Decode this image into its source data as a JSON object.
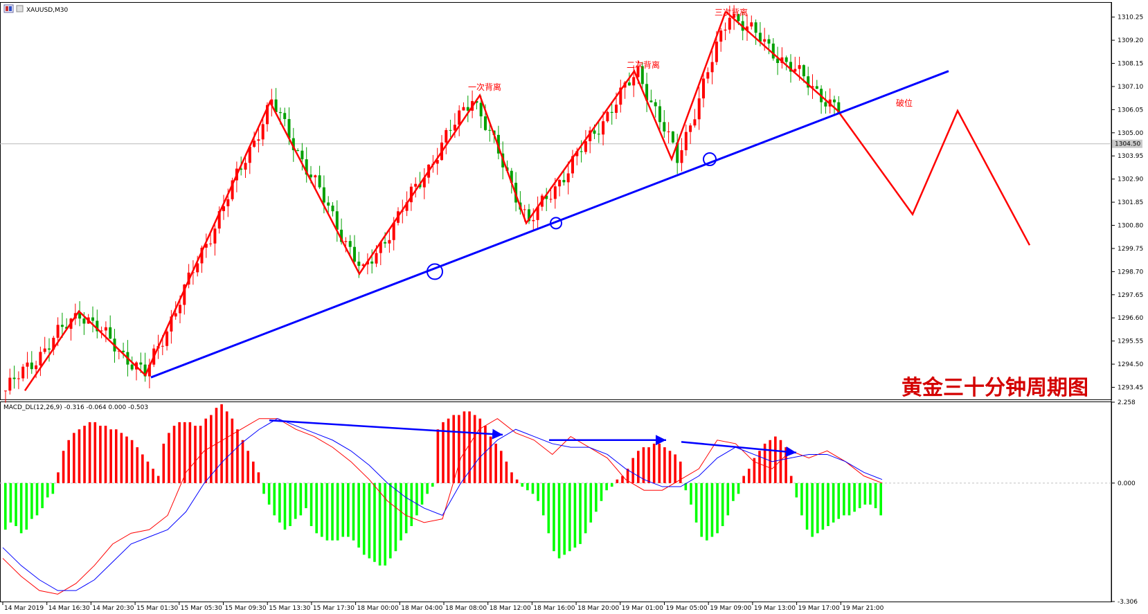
{
  "window": {
    "symbol_title": "XAUUSD,M30",
    "indicator_title": "MACD_DL(12,26,9) -0.316 -0.064 0.000 -0.503"
  },
  "chart_data": [
    {
      "type": "candlestick",
      "title": "黄金三十分钟周期图",
      "ylim": [
        1292.9,
        1310.9
      ],
      "y_ticks": [
        "1310.25",
        "1309.20",
        "1308.15",
        "1307.10",
        "1306.05",
        "1305.00",
        "1303.95",
        "1302.90",
        "1301.85",
        "1300.80",
        "1299.75",
        "1298.70",
        "1297.65",
        "1296.60",
        "1295.55",
        "1294.50",
        "1293.45"
      ],
      "current_price": "1304.50",
      "x_labels": [
        "14 Mar 2019",
        "14 Mar 16:30",
        "14 Mar 20:30",
        "15 Mar 01:30",
        "15 Mar 05:30",
        "15 Mar 09:30",
        "15 Mar 13:30",
        "15 Mar 17:30",
        "18 Mar 00:00",
        "18 Mar 04:00",
        "18 Mar 08:00",
        "18 Mar 12:00",
        "18 Mar 16:00",
        "18 Mar 20:00",
        "19 Mar 01:00",
        "19 Mar 05:00",
        "19 Mar 09:00",
        "19 Mar 13:00",
        "19 Mar 17:00",
        "19 Mar 21:00"
      ],
      "bull_color": "#ff0000",
      "bear_color": "#00a000",
      "zigzag_prices": [
        1293.3,
        1296.9,
        1294.0,
        1306.4,
        1298.6,
        1306.7,
        1300.9,
        1307.8,
        1303.8,
        1310.5
      ],
      "projection_prices": [
        1306.0,
        1301.3,
        1306.0,
        1299.9
      ],
      "trendline_prices": [
        1293.9,
        1307.8
      ],
      "touch_circle_prices": [
        1298.7,
        1300.9,
        1303.8
      ],
      "annotations": {
        "first": "一次背离",
        "second": "二次背离",
        "third": "三次背离",
        "break": "破位"
      },
      "zigzag_color": "#ff0000",
      "trendline_color": "#0000ff"
    },
    {
      "type": "macd",
      "ylim": [
        -3.306,
        2.258
      ],
      "y_ticks": [
        "2.258",
        "0.000",
        "-3.306"
      ],
      "histogram": [
        -1.3,
        -1.1,
        -1.2,
        -1.4,
        -1.3,
        -1.0,
        -0.9,
        -0.7,
        -0.4,
        -0.3,
        0.3,
        0.9,
        1.2,
        1.4,
        1.5,
        1.6,
        1.7,
        1.7,
        1.6,
        1.6,
        1.5,
        1.5,
        1.4,
        1.3,
        1.2,
        1.0,
        0.8,
        0.6,
        0.4,
        0.2,
        1.1,
        1.4,
        1.6,
        1.7,
        1.7,
        1.7,
        1.6,
        1.6,
        1.8,
        1.9,
        2.1,
        2.2,
        2.0,
        1.8,
        1.5,
        1.2,
        0.9,
        0.6,
        0.3,
        -0.3,
        -0.6,
        -0.9,
        -1.1,
        -1.3,
        -1.2,
        -1.0,
        -0.9,
        -0.7,
        -1.2,
        -1.4,
        -1.5,
        -1.6,
        -1.6,
        -1.6,
        -1.5,
        -1.5,
        -1.6,
        -1.8,
        -2.0,
        -2.1,
        -2.2,
        -2.3,
        -2.3,
        -2.1,
        -1.9,
        -1.6,
        -1.4,
        -1.2,
        -0.9,
        -0.6,
        -0.3,
        -0.1,
        1.5,
        1.7,
        1.8,
        1.9,
        1.9,
        2.0,
        2.0,
        1.9,
        1.8,
        1.6,
        1.3,
        1.1,
        0.9,
        0.6,
        0.3,
        0.1,
        -0.1,
        -0.2,
        -0.3,
        -0.5,
        -0.9,
        -1.4,
        -1.9,
        -2.1,
        -2.0,
        -1.9,
        -1.8,
        -1.7,
        -1.4,
        -1.1,
        -0.8,
        -0.5,
        -0.2,
        -0.1,
        0.1,
        0.2,
        0.4,
        0.7,
        0.9,
        1.0,
        1.0,
        1.1,
        1.1,
        1.0,
        0.9,
        0.8,
        0.6,
        -0.2,
        -0.6,
        -1.1,
        -1.5,
        -1.6,
        -1.5,
        -1.4,
        -1.2,
        -0.9,
        -0.5,
        -0.3,
        0.2,
        0.4,
        0.7,
        0.9,
        1.1,
        1.2,
        1.3,
        1.2,
        1.0,
        0.2,
        -0.4,
        -0.9,
        -1.3,
        -1.5,
        -1.4,
        -1.3,
        -1.2,
        -1.1,
        -1.0,
        -0.9,
        -0.9,
        -0.8,
        -0.7,
        -0.6,
        -0.6,
        -0.7,
        -0.9
      ],
      "main_line": [
        -2.1,
        -2.6,
        -3.0,
        -3.1,
        -2.8,
        -2.3,
        -1.7,
        -1.4,
        -1.3,
        -0.9,
        0.3,
        0.9,
        1.2,
        1.5,
        1.8,
        1.8,
        1.5,
        1.3,
        1.0,
        0.6,
        0.1,
        -0.5,
        -0.9,
        -1.1,
        -1.0,
        0.7,
        1.5,
        1.8,
        1.4,
        1.2,
        0.8,
        1.3,
        1.0,
        0.7,
        0.1,
        -0.2,
        -0.2,
        0.1,
        0.4,
        1.2,
        1.1,
        0.6,
        0.4,
        0.9,
        0.7,
        0.9,
        0.6,
        0.2,
        0.0
      ],
      "signal_line": [
        -1.8,
        -2.3,
        -2.7,
        -3.0,
        -3.0,
        -2.7,
        -2.2,
        -1.7,
        -1.5,
        -1.3,
        -0.8,
        0.0,
        0.6,
        1.1,
        1.5,
        1.8,
        1.6,
        1.4,
        1.2,
        0.9,
        0.5,
        0.0,
        -0.4,
        -0.7,
        -0.9,
        0.0,
        0.7,
        1.2,
        1.5,
        1.3,
        1.1,
        1.0,
        1.0,
        0.8,
        0.4,
        0.1,
        -0.1,
        -0.1,
        0.2,
        0.7,
        1.0,
        0.8,
        0.6,
        0.7,
        0.8,
        0.8,
        0.6,
        0.3,
        0.1
      ],
      "main_color": "#ff0000",
      "signal_color": "#0000ff",
      "pos_color": "#ff0000",
      "neg_color": "#00ff00",
      "divergence_arrows_color": "#0000ff"
    }
  ]
}
